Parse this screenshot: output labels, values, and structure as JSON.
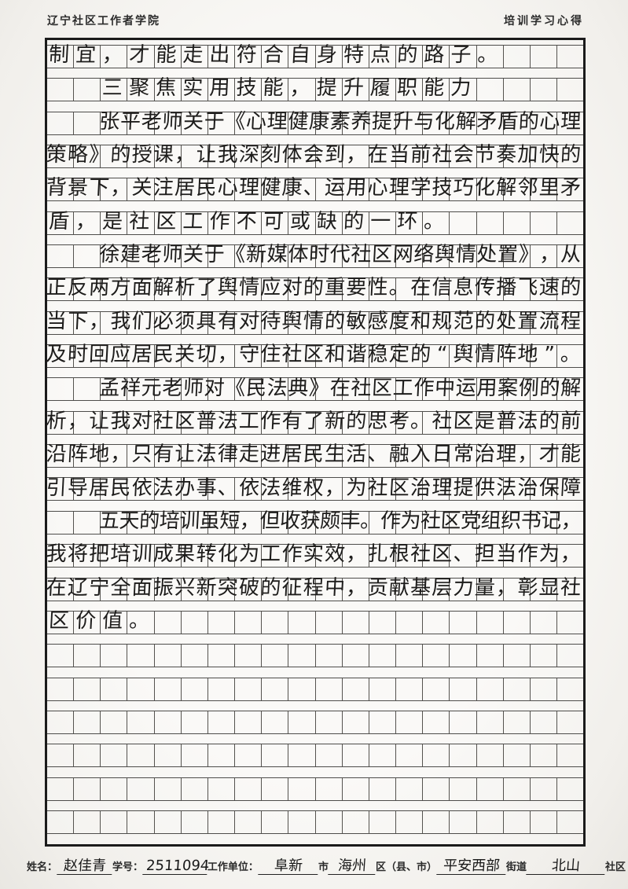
{
  "page": {
    "paper_color": "#f6f5f2",
    "ink_color": "#1d1c1b",
    "grid_line_color": "#4e4d4b",
    "grid_border_color": "#1b1b1b"
  },
  "header": {
    "left_title": "辽宁社区工作者学院",
    "right_title": "培训学习心得"
  },
  "manuscript": {
    "cols": 20,
    "rows": 24,
    "lines": [
      {
        "row": 0,
        "indent": 0,
        "text": "制宜，才能走出符合自身特点的路子。"
      },
      {
        "row": 1,
        "indent": 2,
        "text": "三聚焦实用技能，提升履职能力"
      },
      {
        "row": 2,
        "indent": 2,
        "text": "张平老师关于《心理健康素养提升与化解矛盾的心理"
      },
      {
        "row": 3,
        "indent": 0,
        "text": "策略》的授课，让我深刻体会到，在当前社会节奏加快的"
      },
      {
        "row": 4,
        "indent": 0,
        "text": "背景下，关注居民心理健康、运用心理学技巧化解邻里矛"
      },
      {
        "row": 5,
        "indent": 0,
        "text": "盾，是社区工作不可或缺的一环。"
      },
      {
        "row": 6,
        "indent": 2,
        "text": "徐建老师关于《新媒体时代社区网络舆情处置》，从"
      },
      {
        "row": 7,
        "indent": 0,
        "text": "正反两方面解析了舆情应对的重要性。在信息传播飞速的"
      },
      {
        "row": 8,
        "indent": 0,
        "text": "当下，我们必须具有对待舆情的敏感度和规范的处置流程"
      },
      {
        "row": 9,
        "indent": 0,
        "text": "及时回应居民关切，守住社区和谐稳定的“舆情阵地”。"
      },
      {
        "row": 10,
        "indent": 2,
        "text": "孟祥元老师对《民法典》在社区工作中运用案例的解"
      },
      {
        "row": 11,
        "indent": 0,
        "text": "析，让我对社区普法工作有了新的思考。社区是普法的前"
      },
      {
        "row": 12,
        "indent": 0,
        "text": "沿阵地，只有让法律走进居民生活、融入日常治理，才能"
      },
      {
        "row": 13,
        "indent": 0,
        "text": "引导居民依法办事、依法维权，为社区治理提供法治保障"
      },
      {
        "row": 14,
        "indent": 2,
        "text": "五天的培训虽短，但收获颇丰。作为社区党组织书记，"
      },
      {
        "row": 15,
        "indent": 0,
        "text": "我将把培训成果转化为工作实效，扎根社区、担当作为，"
      },
      {
        "row": 16,
        "indent": 0,
        "text": "在辽宁全面振兴新突破的征程中，贡献基层力量，彰显社"
      },
      {
        "row": 17,
        "indent": 0,
        "text": "区价值。"
      }
    ]
  },
  "footer": {
    "name_label": "姓名：",
    "name_value": "赵佳青",
    "id_label": "学号：",
    "id_value": "2511094",
    "unit_label": "工作单位：",
    "city_value": "阜新",
    "city_suffix": "市",
    "district_value": "海州",
    "district_suffix": "区（县、市）",
    "street_value": "平安西部",
    "street_suffix": "街道",
    "community_value": "北山",
    "community_suffix": "社区"
  }
}
